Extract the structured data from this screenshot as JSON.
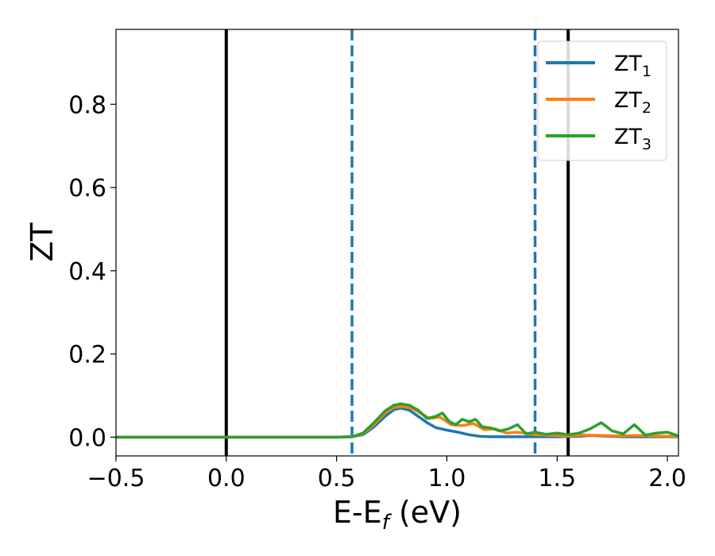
{
  "chart_data": {
    "type": "line",
    "title": "",
    "xlabel": {
      "main": "E-E",
      "sub": "f",
      "suffix": " (eV)"
    },
    "ylabel": "ZT",
    "xlim": [
      -0.5,
      2.05
    ],
    "ylim": [
      -0.045,
      0.98
    ],
    "grid": false,
    "legend_placement": "top-right",
    "x_ticks": [
      {
        "value": -0.5,
        "label": "−0.5"
      },
      {
        "value": 0.0,
        "label": "0.0"
      },
      {
        "value": 0.5,
        "label": "0.5"
      },
      {
        "value": 1.0,
        "label": "1.0"
      },
      {
        "value": 1.5,
        "label": "1.5"
      },
      {
        "value": 2.0,
        "label": "2.0"
      }
    ],
    "y_ticks": [
      {
        "value": 0.0,
        "label": "0.0"
      },
      {
        "value": 0.2,
        "label": "0.2"
      },
      {
        "value": 0.4,
        "label": "0.4"
      },
      {
        "value": 0.6,
        "label": "0.6"
      },
      {
        "value": 0.8,
        "label": "0.8"
      }
    ],
    "reference_lines": [
      {
        "x": 0.0,
        "style": "solid",
        "color": "#000000"
      },
      {
        "x": 1.55,
        "style": "solid",
        "color": "#000000"
      },
      {
        "x": 0.57,
        "style": "dashed",
        "color": "#1f77b4"
      },
      {
        "x": 1.4,
        "style": "dashed",
        "color": "#1f77b4"
      }
    ],
    "series": [
      {
        "name": "ZT",
        "name_sub": "1",
        "color": "#1f77b4",
        "x": [
          -0.5,
          0.5,
          0.57,
          0.62,
          0.67,
          0.72,
          0.76,
          0.79,
          0.83,
          0.87,
          0.91,
          0.95,
          1.0,
          1.05,
          1.1,
          1.15,
          1.2,
          1.3,
          1.4,
          1.5,
          1.6,
          1.65,
          1.7,
          1.8,
          1.9,
          2.05
        ],
        "y": [
          0.0,
          0.0,
          0.001,
          0.006,
          0.025,
          0.05,
          0.066,
          0.07,
          0.065,
          0.05,
          0.035,
          0.023,
          0.017,
          0.012,
          0.006,
          0.002,
          0.001,
          0.001,
          0.001,
          0.001,
          0.002,
          0.004,
          0.003,
          0.001,
          0.001,
          0.001
        ]
      },
      {
        "name": "ZT",
        "name_sub": "2",
        "color": "#ff7f0e",
        "x": [
          -0.5,
          0.5,
          0.57,
          0.62,
          0.67,
          0.72,
          0.76,
          0.8,
          0.84,
          0.88,
          0.92,
          0.97,
          1.02,
          1.07,
          1.12,
          1.17,
          1.22,
          1.27,
          1.32,
          1.4,
          1.48,
          1.55,
          1.62,
          1.7,
          1.78,
          1.86,
          1.94,
          2.05
        ],
        "y": [
          0.0,
          0.0,
          0.001,
          0.008,
          0.03,
          0.058,
          0.072,
          0.074,
          0.07,
          0.058,
          0.045,
          0.048,
          0.03,
          0.028,
          0.033,
          0.018,
          0.02,
          0.01,
          0.012,
          0.006,
          0.004,
          0.003,
          0.005,
          0.004,
          0.003,
          0.004,
          0.003,
          0.002
        ]
      },
      {
        "name": "ZT",
        "name_sub": "3",
        "color": "#2ca02c",
        "x": [
          -0.5,
          0.5,
          0.57,
          0.62,
          0.67,
          0.72,
          0.76,
          0.79,
          0.83,
          0.87,
          0.91,
          0.95,
          0.98,
          1.01,
          1.04,
          1.07,
          1.1,
          1.13,
          1.16,
          1.2,
          1.24,
          1.28,
          1.32,
          1.36,
          1.4,
          1.45,
          1.5,
          1.55,
          1.6,
          1.65,
          1.7,
          1.75,
          1.8,
          1.85,
          1.9,
          1.95,
          2.0,
          2.05
        ],
        "y": [
          0.0,
          0.0,
          0.001,
          0.01,
          0.035,
          0.063,
          0.077,
          0.08,
          0.077,
          0.065,
          0.045,
          0.05,
          0.058,
          0.038,
          0.03,
          0.043,
          0.037,
          0.043,
          0.025,
          0.022,
          0.015,
          0.02,
          0.03,
          0.008,
          0.012,
          0.007,
          0.01,
          0.006,
          0.01,
          0.02,
          0.035,
          0.015,
          0.008,
          0.03,
          0.005,
          0.01,
          0.012,
          0.003
        ]
      }
    ]
  }
}
